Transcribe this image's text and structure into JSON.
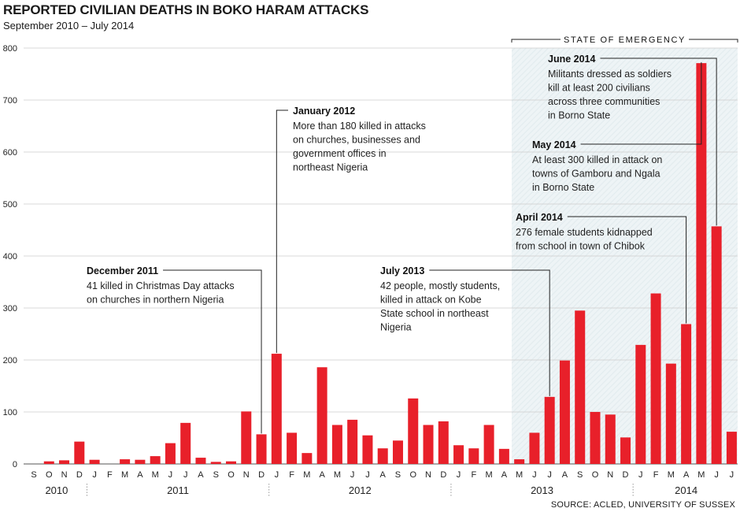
{
  "title": "REPORTED CIVILIAN DEATHS IN BOKO HARAM ATTACKS",
  "subtitle": "September 2010 – July 2014",
  "source": "SOURCE: ACLED, UNIVERSITY OF SUSSEX",
  "colors": {
    "bar": "#e8202a",
    "shade": "#e3ecef",
    "grid": "#cccccc",
    "line": "#222222"
  },
  "chart_data": {
    "type": "bar",
    "ylim": [
      0,
      800
    ],
    "yticks": [
      0,
      100,
      200,
      300,
      400,
      500,
      600,
      700,
      800
    ],
    "categories": [
      "S",
      "O",
      "N",
      "D",
      "J",
      "F",
      "M",
      "A",
      "M",
      "J",
      "J",
      "A",
      "S",
      "O",
      "N",
      "D",
      "J",
      "F",
      "M",
      "A",
      "M",
      "J",
      "J",
      "A",
      "S",
      "O",
      "N",
      "D",
      "J",
      "F",
      "M",
      "A",
      "M",
      "J",
      "J",
      "A",
      "S",
      "O",
      "N",
      "D",
      "J",
      "F",
      "M",
      "A",
      "M",
      "J",
      "J"
    ],
    "values": [
      0,
      5,
      7,
      43,
      8,
      0,
      9,
      8,
      15,
      40,
      79,
      12,
      4,
      5,
      101,
      57,
      212,
      60,
      21,
      186,
      75,
      85,
      55,
      30,
      45,
      126,
      75,
      82,
      36,
      30,
      75,
      29,
      9,
      60,
      129,
      199,
      295,
      100,
      95,
      51,
      229,
      328,
      193,
      269,
      771,
      457,
      62
    ],
    "years": [
      {
        "label": "2010",
        "start": 0,
        "end": 3
      },
      {
        "label": "2011",
        "start": 4,
        "end": 15
      },
      {
        "label": "2012",
        "start": 16,
        "end": 27
      },
      {
        "label": "2013",
        "start": 28,
        "end": 39
      },
      {
        "label": "2014",
        "start": 40,
        "end": 46
      }
    ],
    "shaded_region": {
      "label": "STATE OF EMERGENCY",
      "start": 32,
      "end": 46
    },
    "annotations": [
      {
        "index": 15,
        "title": "December 2011",
        "lines": [
          "41 killed in Christmas Day attacks",
          "on churches in northern Nigeria"
        ]
      },
      {
        "index": 16,
        "title": "January 2012",
        "lines": [
          "More than 180 killed in attacks",
          "on churches, businesses and",
          "government offices in",
          "northeast Nigeria"
        ]
      },
      {
        "index": 34,
        "title": "July 2013",
        "lines": [
          "42 people, mostly students,",
          "killed in attack on Kobe",
          "State school in northeast",
          "Nigeria"
        ]
      },
      {
        "index": 43,
        "title": "April 2014",
        "lines": [
          "276 female students kidnapped",
          "from school in town of Chibok"
        ]
      },
      {
        "index": 44,
        "title": "May 2014",
        "lines": [
          "At least 300 killed in attack on",
          "towns of Gamboru and Ngala",
          "in Borno State"
        ]
      },
      {
        "index": 45,
        "title": "June 2014",
        "lines": [
          "Militants dressed as soldiers",
          "kill at least 200 civilians",
          "across three communities",
          "in Borno State"
        ]
      }
    ]
  }
}
